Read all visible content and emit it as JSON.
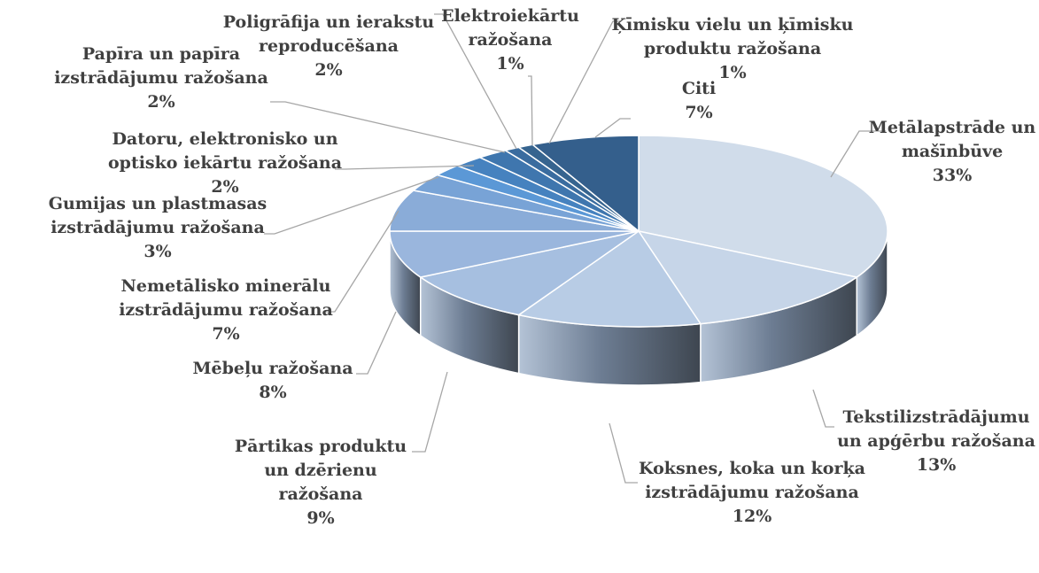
{
  "chart_data": {
    "type": "pie",
    "style": "3d",
    "title": "",
    "legend": "none",
    "slices": [
      {
        "label": "Metālapstrāde un mašīnbūve",
        "percent_label": "33%",
        "value": 33,
        "color": "#d0dcea"
      },
      {
        "label": "Tekstilizstrādājumu un apģērbu ražošana",
        "percent_label": "13%",
        "value": 13,
        "color": "#c6d5e8"
      },
      {
        "label": "Koksnes, koka un korķa izstrādājumu ražošana",
        "percent_label": "12%",
        "value": 12,
        "color": "#b8cce5"
      },
      {
        "label": "Pārtikas produktu un dzērienu ražošana",
        "percent_label": "9%",
        "value": 9,
        "color": "#a6bfe0"
      },
      {
        "label": "Mēbeļu ražošana",
        "percent_label": "8%",
        "value": 8,
        "color": "#9ab6dd"
      },
      {
        "label": "Nemetālisko minerālu izstrādājumu ražošana",
        "percent_label": "7%",
        "value": 7,
        "color": "#8aacd8"
      },
      {
        "label": "Gumijas un plastmasas izstrādājumu ražošana",
        "percent_label": "3%",
        "value": 3,
        "color": "#78a3d6"
      },
      {
        "label": "Datoru, elektronisko un optisko iekārtu ražošana",
        "percent_label": "2%",
        "value": 2,
        "color": "#5b98d6"
      },
      {
        "label": "Papīra un papīra izstrādājumu ražošana",
        "percent_label": "2%",
        "value": 2,
        "color": "#4682bf"
      },
      {
        "label": "Poligrāfija un ierakstu reproducēšana",
        "percent_label": "2%",
        "value": 2,
        "color": "#3f76ae"
      },
      {
        "label": "Elektroiekārtu ražošana",
        "percent_label": "1%",
        "value": 1,
        "color": "#3a6c9f"
      },
      {
        "label": "Ķīmisku vielu un ķīmisku produktu ražošana",
        "percent_label": "1%",
        "value": 1,
        "color": "#36648f"
      },
      {
        "label": "Citi",
        "percent_label": "7%",
        "value": 7,
        "color": "#345f8c"
      }
    ]
  }
}
